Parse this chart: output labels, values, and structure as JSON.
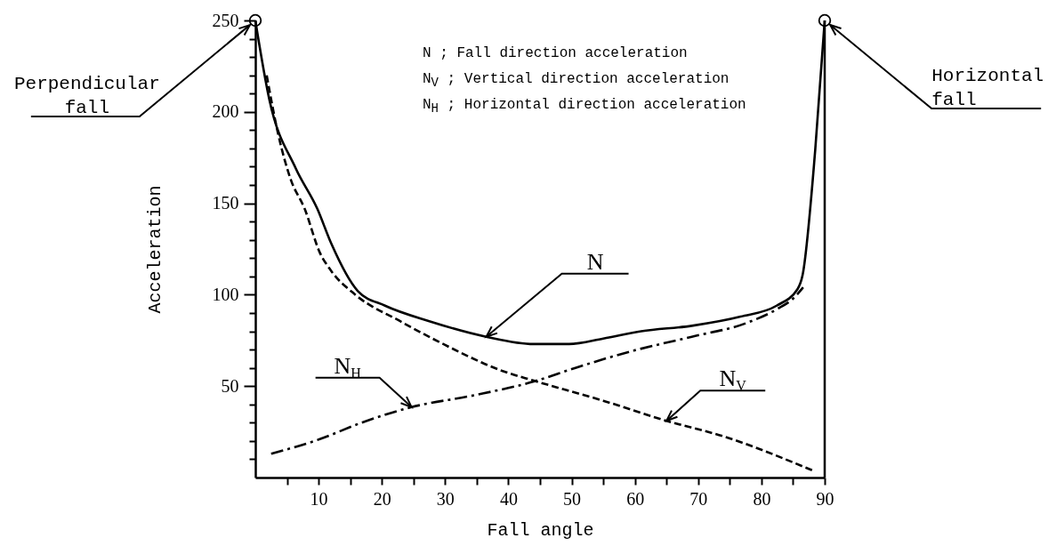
{
  "chart_data": {
    "type": "line",
    "xlabel": "Fall angle",
    "ylabel": "Acceleration",
    "xlim": [
      0,
      90
    ],
    "ylim": [
      0,
      250
    ],
    "xticks": [
      {
        "value": 5,
        "label": null
      },
      10,
      {
        "value": 15,
        "label": null
      },
      20,
      {
        "value": 25,
        "label": null
      },
      30,
      {
        "value": 35,
        "label": null
      },
      40,
      {
        "value": 45,
        "label": null
      },
      50,
      {
        "value": 55,
        "label": null
      },
      60,
      {
        "value": 65,
        "label": null
      },
      70,
      {
        "value": 75,
        "label": null
      },
      80,
      {
        "value": 85,
        "label": null
      },
      90
    ],
    "yticks": [
      {
        "value": 10,
        "label": null
      },
      {
        "value": 20,
        "label": null
      },
      {
        "value": 30,
        "label": null
      },
      {
        "value": 40,
        "label": null
      },
      50,
      {
        "value": 60,
        "label": null
      },
      {
        "value": 70,
        "label": null
      },
      {
        "value": 80,
        "label": null
      },
      {
        "value": 90,
        "label": null
      },
      100,
      {
        "value": 110,
        "label": null
      },
      {
        "value": 120,
        "label": null
      },
      {
        "value": 130,
        "label": null
      },
      {
        "value": 140,
        "label": null
      },
      150,
      {
        "value": 160,
        "label": null
      },
      {
        "value": 170,
        "label": null
      },
      {
        "value": 180,
        "label": null
      },
      {
        "value": 190,
        "label": null
      },
      200,
      {
        "value": 210,
        "label": null
      },
      {
        "value": 220,
        "label": null
      },
      {
        "value": 230,
        "label": null
      },
      {
        "value": 240,
        "label": null
      },
      250
    ],
    "grid": false,
    "marker": "none",
    "series": [
      {
        "name": "N",
        "color": "#000000",
        "line_style": "solid",
        "x": [
          0,
          2.2,
          6.4,
          9.8,
          12,
          16.2,
          20.5,
          27.5,
          36.5,
          44,
          49.6,
          55,
          61,
          69,
          76.7,
          82.4,
          85.7,
          86.5,
          88.5,
          90
        ],
        "values": [
          250,
          207,
          169,
          147,
          128,
          102,
          94,
          85.5,
          77,
          73,
          73,
          76,
          80,
          83,
          88,
          94,
          103,
          110.6,
          179,
          250
        ]
      },
      {
        "name": "N$_{V}$",
        "color": "#000000",
        "line_style": "dashed",
        "x": [
          1.8,
          3.6,
          5.6,
          7.8,
          10.2,
          12,
          15.8,
          22.9,
          30,
          39.3,
          44,
          55,
          65,
          74,
          88
        ],
        "values": [
          220,
          188,
          163,
          147,
          123,
          113,
          100,
          85.5,
          72.5,
          58,
          53,
          42,
          31,
          22.5,
          4
        ]
      },
      {
        "name": "N$_{H}$",
        "color": "#000000",
        "line_style": "dashdot",
        "x": [
          2.5,
          10.2,
          16.8,
          24.7,
          34.6,
          44,
          50.6,
          59.9,
          69,
          77.7,
          82.4,
          85.2,
          86.6
        ],
        "values": [
          13,
          21,
          30,
          38.5,
          45,
          52.5,
          60,
          69.5,
          77,
          84.6,
          92,
          98.5,
          104
        ]
      },
      {
        "type": "scatter",
        "color": "#000000",
        "marker": "circle",
        "x": [
          0,
          90
        ],
        "values": [
          250,
          250
        ]
      }
    ],
    "ref_lines": [
      {
        "axis": "x",
        "value": 90,
        "label": null
      }
    ],
    "annotations": [
      {
        "text": "Perpendicular\nfall",
        "x": 0,
        "y": 250
      },
      {
        "text": "Horizontal\nfall",
        "x": 90,
        "y": 250
      },
      "N ; Fall direction acceleration",
      "N$_{V}$ ; Vertical direction acceleration",
      "N$_{H}$ ; Horizontal direction acceleration"
    ]
  }
}
